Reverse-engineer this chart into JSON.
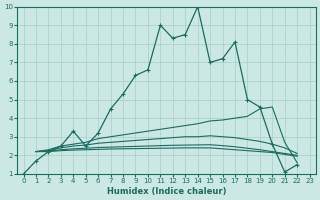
{
  "xlabel": "Humidex (Indice chaleur)",
  "bg_color": "#cce8e4",
  "grid_color": "#aad4cc",
  "line_color": "#1a6b60",
  "xlim": [
    -0.5,
    23.5
  ],
  "ylim": [
    1,
    10
  ],
  "xticks": [
    0,
    1,
    2,
    3,
    4,
    5,
    6,
    7,
    8,
    9,
    10,
    11,
    12,
    13,
    14,
    15,
    16,
    17,
    18,
    19,
    20,
    21,
    22,
    23
  ],
  "yticks": [
    1,
    2,
    3,
    4,
    5,
    6,
    7,
    8,
    9,
    10
  ],
  "series": [
    {
      "x": [
        0,
        1,
        2,
        3,
        4,
        5,
        6,
        7,
        8,
        9,
        10,
        11,
        12,
        13,
        14,
        15,
        16,
        17,
        18,
        19,
        20,
        21,
        22
      ],
      "y": [
        1.0,
        1.7,
        2.2,
        2.5,
        3.3,
        2.5,
        3.2,
        4.5,
        5.3,
        6.3,
        6.6,
        9.0,
        8.3,
        8.5,
        10.0,
        7.0,
        7.2,
        8.1,
        5.0,
        4.6,
        2.6,
        1.1,
        1.5
      ],
      "has_markers": true
    },
    {
      "x": [
        1,
        2,
        3,
        4,
        5,
        6,
        7,
        8,
        9,
        10,
        11,
        12,
        13,
        14,
        15,
        16,
        17,
        18,
        19,
        20,
        21,
        22
      ],
      "y": [
        2.2,
        2.3,
        2.5,
        2.6,
        2.7,
        2.9,
        3.0,
        3.1,
        3.2,
        3.3,
        3.4,
        3.5,
        3.6,
        3.7,
        3.85,
        3.9,
        4.0,
        4.1,
        4.5,
        4.6,
        2.7,
        1.6
      ],
      "has_markers": false
    },
    {
      "x": [
        1,
        2,
        3,
        4,
        5,
        6,
        7,
        8,
        9,
        10,
        11,
        12,
        13,
        14,
        15,
        16,
        17,
        18,
        19,
        20,
        21,
        22
      ],
      "y": [
        2.2,
        2.25,
        2.4,
        2.5,
        2.55,
        2.65,
        2.7,
        2.75,
        2.8,
        2.85,
        2.9,
        2.95,
        3.0,
        3.0,
        3.05,
        3.0,
        2.95,
        2.85,
        2.75,
        2.6,
        2.4,
        2.1
      ],
      "has_markers": false
    },
    {
      "x": [
        1,
        2,
        3,
        4,
        5,
        6,
        7,
        8,
        9,
        10,
        11,
        12,
        13,
        14,
        15,
        16,
        17,
        18,
        19,
        20,
        21,
        22
      ],
      "y": [
        2.2,
        2.22,
        2.3,
        2.35,
        2.38,
        2.42,
        2.44,
        2.46,
        2.48,
        2.5,
        2.52,
        2.54,
        2.55,
        2.56,
        2.57,
        2.52,
        2.46,
        2.38,
        2.3,
        2.2,
        2.1,
        2.0
      ],
      "has_markers": false
    },
    {
      "x": [
        1,
        2,
        3,
        4,
        5,
        6,
        7,
        8,
        9,
        10,
        11,
        12,
        13,
        14,
        15,
        16,
        17,
        18,
        19,
        20,
        21,
        22
      ],
      "y": [
        2.2,
        2.2,
        2.25,
        2.28,
        2.3,
        2.32,
        2.34,
        2.35,
        2.36,
        2.37,
        2.38,
        2.39,
        2.4,
        2.4,
        2.4,
        2.35,
        2.3,
        2.25,
        2.2,
        2.15,
        2.05,
        1.95
      ],
      "has_markers": false
    }
  ]
}
